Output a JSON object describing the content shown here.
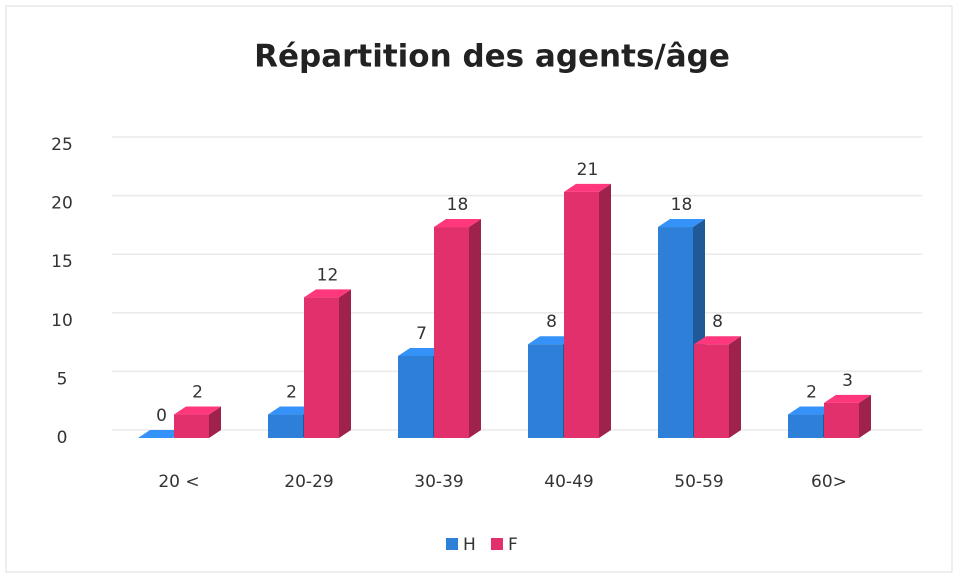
{
  "chart_data": {
    "type": "bar3d",
    "title": "Répartition des agents/âge",
    "categories": [
      "20 <",
      "20-29",
      "30-39",
      "40-49",
      "50-59",
      "60>"
    ],
    "series": [
      {
        "name": "H",
        "color": "#2d7fd8",
        "values": [
          0,
          2,
          7,
          8,
          18,
          2
        ]
      },
      {
        "name": "F",
        "color": "#e2306c",
        "values": [
          2,
          12,
          18,
          21,
          8,
          3
        ]
      }
    ],
    "ylim": [
      0,
      25
    ],
    "yticks": [
      0,
      5,
      10,
      15,
      20,
      25
    ],
    "grid": true,
    "legend": "bottom"
  }
}
